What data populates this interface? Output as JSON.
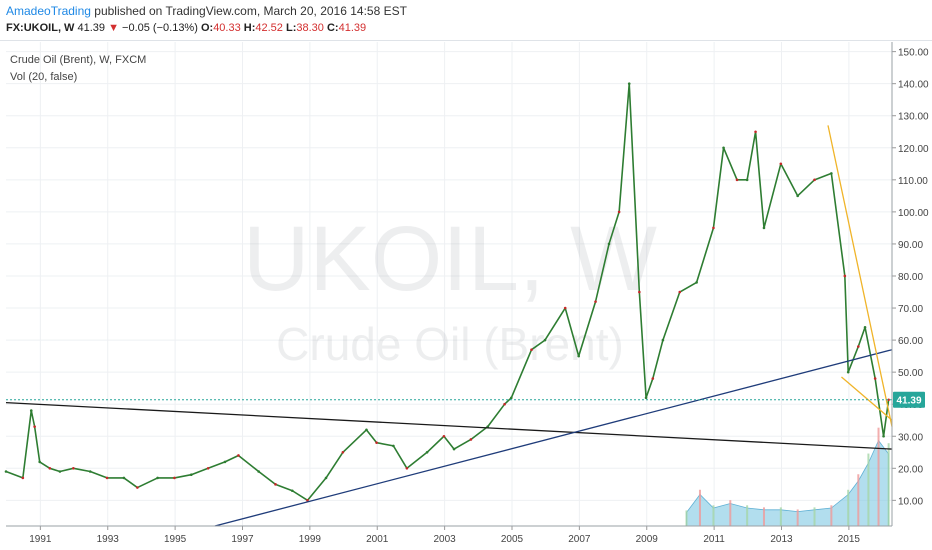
{
  "header": {
    "author": "AmadeoTrading",
    "published_text": "published on TradingView.com, March 20, 2016 14:58 EST",
    "symbol": "FX:UKOIL, W",
    "last": "41.39",
    "change": "−0.05 (−0.13%)",
    "open_label": "O:",
    "open": "40.33",
    "high_label": "H:",
    "high": "42.52",
    "low_label": "L:",
    "low": "38.30",
    "close_label": "C:",
    "close": "41.39"
  },
  "legend": {
    "series": "Crude Oil (Brent), W, FXCM",
    "indicator": "Vol (20, false)"
  },
  "watermark": {
    "symbol": "UKOIL, W",
    "name": "Crude Oil (Brent)"
  },
  "colors": {
    "price_line": "#2e7d32",
    "support_line": "#1f3c7a",
    "long_trend_line": "#1a1a1a",
    "channel_line": "#f0b429",
    "last_price_badge": "#26a69a",
    "volume": "#7ec8e3"
  },
  "chart_data": {
    "type": "line",
    "title": "Crude Oil (Brent), W, FXCM",
    "x_ticks": [
      "1991",
      "1993",
      "1995",
      "1997",
      "1999",
      "2001",
      "2003",
      "2005",
      "2007",
      "2009",
      "2011",
      "2013",
      "2015"
    ],
    "y_ticks": [
      "10.00",
      "20.00",
      "30.00",
      "40.00",
      "50.00",
      "60.00",
      "70.00",
      "80.00",
      "90.00",
      "100.00",
      "110.00",
      "120.00",
      "130.00",
      "140.00",
      "150.00"
    ],
    "xlim": [
      1990.0,
      2016.3
    ],
    "ylim": [
      2,
      153
    ],
    "last_price_label": "41.39",
    "last_price": 41.39,
    "series": [
      {
        "x": [
          1990.0,
          1990.5,
          1990.75,
          1990.85,
          1991.0,
          1991.3,
          1991.6,
          1992.0,
          1992.5,
          1993.0,
          1993.5,
          1993.9,
          1994.5,
          1995.0,
          1995.5,
          1996.0,
          1996.5,
          1996.9,
          1997.5,
          1998.0,
          1998.5,
          1998.95,
          1999.5,
          2000.0,
          2000.7,
          2001.0,
          2001.5,
          2001.9,
          2002.5,
          2003.0,
          2003.3,
          2003.8,
          2004.3,
          2004.8,
          2005.0,
          2005.6,
          2006.0,
          2006.6,
          2007.0,
          2007.5,
          2007.9,
          2008.2,
          2008.5,
          2008.8,
          2009.0,
          2009.2,
          2009.5,
          2010.0,
          2010.5,
          2011.0,
          2011.3,
          2011.7,
          2012.0,
          2012.25,
          2012.5,
          2013.0,
          2013.5,
          2014.0,
          2014.5,
          2014.9,
          2015.0,
          2015.3,
          2015.5,
          2015.8,
          2016.05,
          2016.2
        ],
        "y": [
          19,
          17,
          38,
          33,
          22,
          20,
          19,
          20,
          19,
          17,
          17,
          14,
          17,
          17,
          18,
          20,
          22,
          24,
          19,
          15,
          13,
          10,
          17,
          25,
          32,
          28,
          27,
          20,
          25,
          30,
          26,
          29,
          33,
          40,
          42,
          57,
          60,
          70,
          55,
          72,
          90,
          100,
          140,
          75,
          42,
          48,
          60,
          75,
          78,
          95,
          120,
          110,
          110,
          125,
          95,
          115,
          105,
          110,
          112,
          80,
          50,
          58,
          64,
          48,
          30,
          41.39
        ]
      }
    ],
    "volume": {
      "x": [
        2010.2,
        2010.6,
        2011.0,
        2011.5,
        2012.0,
        2012.5,
        2013.0,
        2013.5,
        2014.0,
        2014.5,
        2015.0,
        2015.3,
        2015.6,
        2015.9,
        2016.2
      ],
      "values": [
        0.15,
        0.35,
        0.2,
        0.25,
        0.2,
        0.18,
        0.18,
        0.16,
        0.18,
        0.2,
        0.35,
        0.5,
        0.7,
        0.95,
        0.8
      ]
    },
    "trend_lines": [
      {
        "name": "long-downtrend",
        "points": [
          [
            1990.0,
            40.5
          ],
          [
            2016.3,
            26
          ]
        ]
      },
      {
        "name": "support-uptrend",
        "points": [
          [
            1996.2,
            2
          ],
          [
            2016.3,
            57
          ]
        ]
      },
      {
        "name": "channel-upper",
        "points": [
          [
            2014.4,
            127
          ],
          [
            2016.3,
            33
          ]
        ]
      },
      {
        "name": "channel-lower",
        "points": [
          [
            2014.8,
            48.5
          ],
          [
            2016.3,
            35
          ]
        ]
      }
    ]
  }
}
